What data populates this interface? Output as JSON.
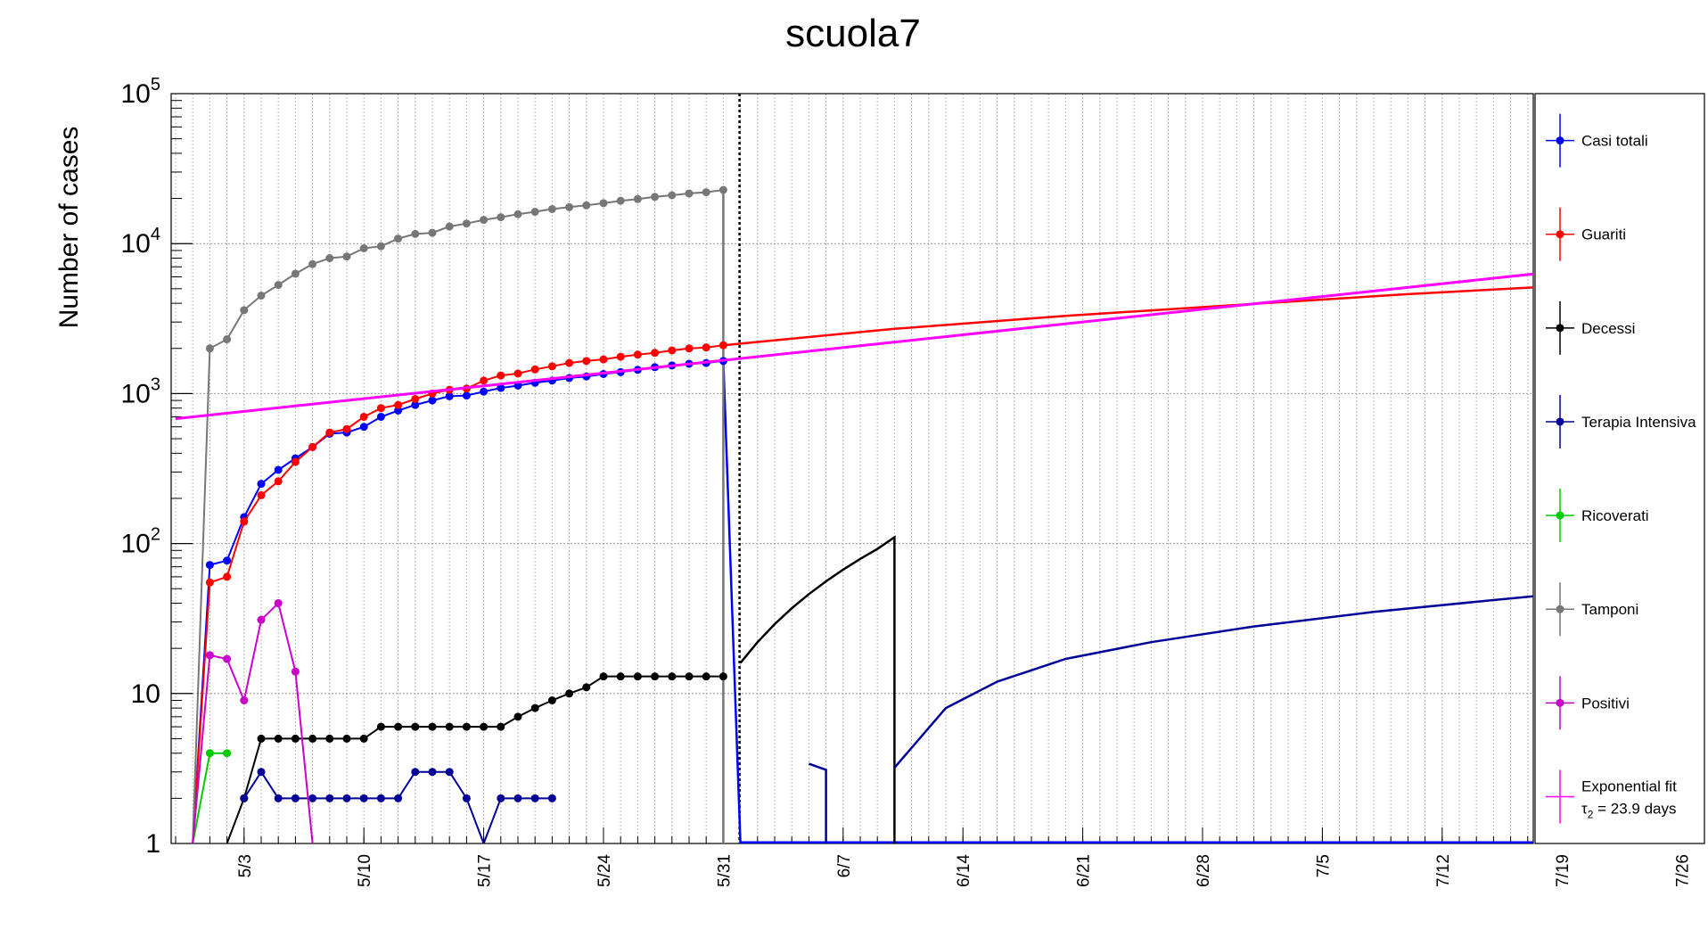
{
  "chart_data": {
    "type": "line",
    "title": "scuola7",
    "ylabel": "Number of cases",
    "xlabel": "",
    "y_scale": "log",
    "ylim": [
      1,
      100000
    ],
    "xlim": [
      "2020-04-29",
      "2020-08-03"
    ],
    "grid": true,
    "legend_position": "right",
    "y_ticks": [
      {
        "base": "1",
        "exp": ""
      },
      {
        "base": "10",
        "exp": ""
      },
      {
        "base": "10",
        "exp": "2"
      },
      {
        "base": "10",
        "exp": "3"
      },
      {
        "base": "10",
        "exp": "4"
      },
      {
        "base": "10",
        "exp": "5"
      }
    ],
    "x_ticks": [
      {
        "label": "5/3",
        "date": "2020-05-03"
      },
      {
        "label": "5/10",
        "date": "2020-05-10"
      },
      {
        "label": "5/17",
        "date": "2020-05-17"
      },
      {
        "label": "5/24",
        "date": "2020-05-24"
      },
      {
        "label": "5/31",
        "date": "2020-05-31"
      },
      {
        "label": "6/7",
        "date": "2020-06-07"
      },
      {
        "label": "6/14",
        "date": "2020-06-14"
      },
      {
        "label": "6/21",
        "date": "2020-06-21"
      },
      {
        "label": "6/28",
        "date": "2020-06-28"
      },
      {
        "label": "7/5",
        "date": "2020-07-05"
      },
      {
        "label": "7/12",
        "date": "2020-07-12"
      },
      {
        "label": "7/19",
        "date": "2020-07-19"
      },
      {
        "label": "7/26",
        "date": "2020-07-26"
      }
    ],
    "vertical_marker": {
      "date": "2020-06-01",
      "style": "dotted",
      "color": "#000000"
    },
    "series": [
      {
        "name": "Casi totali",
        "color": "#0000ff",
        "markers": true,
        "x": [
          "2020-04-30",
          "2020-05-01",
          "2020-05-02",
          "2020-05-03",
          "2020-05-04",
          "2020-05-05",
          "2020-05-06",
          "2020-05-07",
          "2020-05-08",
          "2020-05-09",
          "2020-05-10",
          "2020-05-11",
          "2020-05-12",
          "2020-05-13",
          "2020-05-14",
          "2020-05-15",
          "2020-05-16",
          "2020-05-17",
          "2020-05-18",
          "2020-05-19",
          "2020-05-20",
          "2020-05-21",
          "2020-05-22",
          "2020-05-23",
          "2020-05-24",
          "2020-05-25",
          "2020-05-26",
          "2020-05-27",
          "2020-05-28",
          "2020-05-29",
          "2020-05-30",
          "2020-05-31"
        ],
        "y": [
          1,
          72,
          77,
          150,
          250,
          310,
          370,
          440,
          540,
          550,
          600,
          700,
          770,
          840,
          900,
          960,
          970,
          1030,
          1090,
          1130,
          1180,
          1220,
          1270,
          1300,
          1350,
          1390,
          1440,
          1500,
          1540,
          1580,
          1600,
          1650
        ]
      },
      {
        "name": "Guariti",
        "color": "#ff0000",
        "markers": true,
        "x": [
          "2020-04-30",
          "2020-05-01",
          "2020-05-02",
          "2020-05-03",
          "2020-05-04",
          "2020-05-05",
          "2020-05-06",
          "2020-05-07",
          "2020-05-08",
          "2020-05-09",
          "2020-05-10",
          "2020-05-11",
          "2020-05-12",
          "2020-05-13",
          "2020-05-14",
          "2020-05-15",
          "2020-05-16",
          "2020-05-17",
          "2020-05-18",
          "2020-05-19",
          "2020-05-20",
          "2020-05-21",
          "2020-05-22",
          "2020-05-23",
          "2020-05-24",
          "2020-05-25",
          "2020-05-26",
          "2020-05-27",
          "2020-05-28",
          "2020-05-29",
          "2020-05-30",
          "2020-05-31"
        ],
        "y": [
          1,
          55,
          60,
          140,
          210,
          260,
          350,
          440,
          550,
          580,
          700,
          800,
          840,
          920,
          1000,
          1060,
          1080,
          1220,
          1320,
          1360,
          1450,
          1520,
          1600,
          1650,
          1690,
          1760,
          1820,
          1870,
          1940,
          2000,
          2030,
          2100
        ]
      },
      {
        "name": "Decessi",
        "color": "#000000",
        "markers": true,
        "x": [
          "2020-05-02",
          "2020-05-03",
          "2020-05-04",
          "2020-05-05",
          "2020-05-06",
          "2020-05-07",
          "2020-05-08",
          "2020-05-09",
          "2020-05-10",
          "2020-05-11",
          "2020-05-12",
          "2020-05-13",
          "2020-05-14",
          "2020-05-15",
          "2020-05-16",
          "2020-05-17",
          "2020-05-18",
          "2020-05-19",
          "2020-05-20",
          "2020-05-21",
          "2020-05-22",
          "2020-05-23",
          "2020-05-24",
          "2020-05-25",
          "2020-05-26",
          "2020-05-27",
          "2020-05-28",
          "2020-05-29",
          "2020-05-30",
          "2020-05-31"
        ],
        "y": [
          1,
          2,
          5,
          5,
          5,
          5,
          5,
          5,
          5,
          6,
          6,
          6,
          6,
          6,
          6,
          6,
          6,
          7,
          8,
          9,
          10,
          11,
          13,
          13,
          13,
          13,
          13,
          13,
          13,
          13
        ]
      },
      {
        "name": "Terapia Intensiva",
        "color": "#000099",
        "markers": true,
        "x": [
          "2020-05-03",
          "2020-05-04",
          "2020-05-05",
          "2020-05-06",
          "2020-05-07",
          "2020-05-08",
          "2020-05-09",
          "2020-05-10",
          "2020-05-11",
          "2020-05-12",
          "2020-05-13",
          "2020-05-14",
          "2020-05-15",
          "2020-05-16",
          "2020-05-17",
          "2020-05-18",
          "2020-05-19",
          "2020-05-20",
          "2020-05-21"
        ],
        "y": [
          2,
          3,
          2,
          2,
          2,
          2,
          2,
          2,
          2,
          2,
          3,
          3,
          3,
          2,
          1,
          2,
          2,
          2,
          2
        ]
      },
      {
        "name": "Ricoverati",
        "color": "#00cc00",
        "markers": true,
        "x": [
          "2020-04-30",
          "2020-05-01",
          "2020-05-02"
        ],
        "y": [
          1,
          4,
          4
        ]
      },
      {
        "name": "Tamponi",
        "color": "#777777",
        "markers": true,
        "x": [
          "2020-04-30",
          "2020-05-01",
          "2020-05-02",
          "2020-05-03",
          "2020-05-04",
          "2020-05-05",
          "2020-05-06",
          "2020-05-07",
          "2020-05-08",
          "2020-05-09",
          "2020-05-10",
          "2020-05-11",
          "2020-05-12",
          "2020-05-13",
          "2020-05-14",
          "2020-05-15",
          "2020-05-16",
          "2020-05-17",
          "2020-05-18",
          "2020-05-19",
          "2020-05-20",
          "2020-05-21",
          "2020-05-22",
          "2020-05-23",
          "2020-05-24",
          "2020-05-25",
          "2020-05-26",
          "2020-05-27",
          "2020-05-28",
          "2020-05-29",
          "2020-05-30",
          "2020-05-31"
        ],
        "y": [
          1,
          2000,
          2300,
          3600,
          4500,
          5300,
          6300,
          7300,
          8000,
          8200,
          9300,
          9600,
          10800,
          11600,
          11800,
          13000,
          13600,
          14400,
          15000,
          15700,
          16300,
          17000,
          17500,
          18000,
          18600,
          19300,
          19800,
          20500,
          21000,
          21600,
          22000,
          22800
        ]
      },
      {
        "name": "Positivi",
        "color": "#cc00cc",
        "markers": true,
        "x": [
          "2020-04-30",
          "2020-05-01",
          "2020-05-02",
          "2020-05-03",
          "2020-05-04",
          "2020-05-05",
          "2020-05-06",
          "2020-05-07"
        ],
        "y": [
          1,
          18,
          17,
          9,
          31,
          40,
          14,
          1
        ]
      },
      {
        "name": "Exponential fit",
        "color": "#ff00ff",
        "markers": false,
        "x": [
          "2020-04-29",
          "2020-08-03"
        ],
        "y": [
          680,
          10000
        ]
      }
    ],
    "extrapolations": [
      {
        "series": "Guariti",
        "color": "#ff0000",
        "x": [
          "2020-05-31",
          "2020-06-10",
          "2020-06-20",
          "2020-06-30",
          "2020-07-10",
          "2020-07-20",
          "2020-08-01",
          "2020-08-01"
        ],
        "y": [
          2100,
          2700,
          3300,
          3900,
          4600,
          5300,
          6500,
          1
        ]
      },
      {
        "series": "Casi totali",
        "color": "#0000ff",
        "x": [
          "2020-05-31",
          "2020-06-01"
        ],
        "y": [
          1650,
          1
        ]
      },
      {
        "series": "Tamponi",
        "color": "#777777",
        "x": [
          "2020-05-31",
          "2020-05-31"
        ],
        "y": [
          22800,
          1
        ]
      },
      {
        "series": "Decessi",
        "color": "#000000",
        "x": [
          "2020-06-01",
          "2020-06-02",
          "2020-06-03",
          "2020-06-04",
          "2020-06-05",
          "2020-06-06",
          "2020-06-07",
          "2020-06-08",
          "2020-06-09",
          "2020-06-10",
          "2020-06-10"
        ],
        "y": [
          16,
          22,
          29,
          37,
          46,
          56,
          67,
          79,
          92,
          110,
          1
        ]
      },
      {
        "series": "Terapia Intensiva",
        "color": "#000099",
        "x": [
          "2020-06-05",
          "2020-06-06",
          "2020-06-06"
        ],
        "y": [
          3.4,
          3.1,
          1
        ]
      },
      {
        "series": "Terapia Intensiva",
        "color": "#000099",
        "x": [
          "2020-06-10",
          "2020-06-13",
          "2020-06-16",
          "2020-06-20",
          "2020-06-25",
          "2020-07-01",
          "2020-07-08",
          "2020-07-15",
          "2020-07-22",
          "2020-07-31",
          "2020-07-31"
        ],
        "y": [
          3.2,
          8,
          12,
          17,
          22,
          28,
          35,
          42,
          50,
          62,
          1
        ]
      }
    ],
    "legend": [
      {
        "label": "Casi totali",
        "color": "#0000ff",
        "marker": true
      },
      {
        "label": "Guariti",
        "color": "#ff0000",
        "marker": true
      },
      {
        "label": "Decessi",
        "color": "#000000",
        "marker": true
      },
      {
        "label": "Terapia Intensiva",
        "color": "#000099",
        "marker": true
      },
      {
        "label": "Ricoverati",
        "color": "#00cc00",
        "marker": true
      },
      {
        "label": "Tamponi",
        "color": "#777777",
        "marker": true
      },
      {
        "label": "Positivi",
        "color": "#cc00cc",
        "marker": true
      },
      {
        "label": "Exponential fit",
        "label2_base": "τ",
        "label2_sub": "2",
        "label2_rest": " = 23.9 days",
        "color": "#ff00ff",
        "marker": false
      }
    ]
  }
}
